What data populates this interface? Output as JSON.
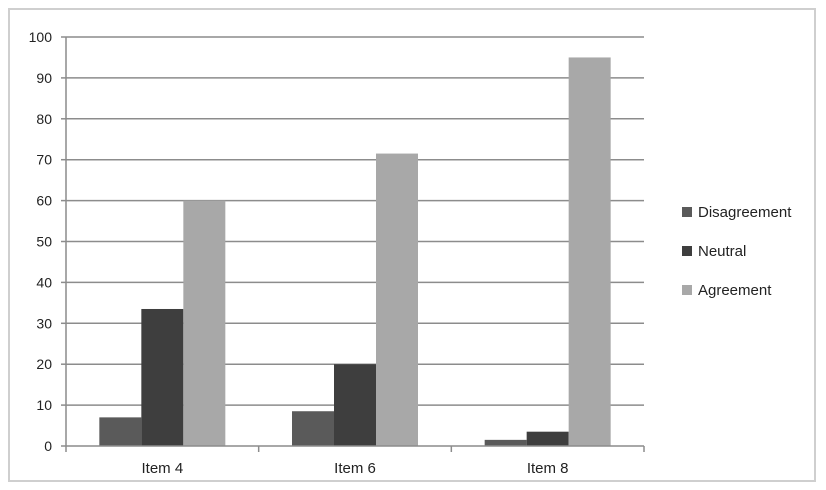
{
  "chart_data": {
    "type": "bar",
    "categories": [
      "Item 4",
      "Item 6",
      "Item 8"
    ],
    "series": [
      {
        "name": "Disagreement",
        "values": [
          7,
          8.5,
          1.5
        ],
        "color": "#5a5a5a"
      },
      {
        "name": "Neutral",
        "values": [
          33.5,
          20,
          3.5
        ],
        "color": "#3e3e3e"
      },
      {
        "name": "Agreement",
        "values": [
          60,
          71.5,
          95
        ],
        "color": "#a8a8a8"
      }
    ],
    "ylim": [
      0,
      100
    ],
    "yticks": [
      0,
      10,
      20,
      30,
      40,
      50,
      60,
      70,
      80,
      90,
      100
    ],
    "grid": true,
    "legend_position": "right"
  }
}
